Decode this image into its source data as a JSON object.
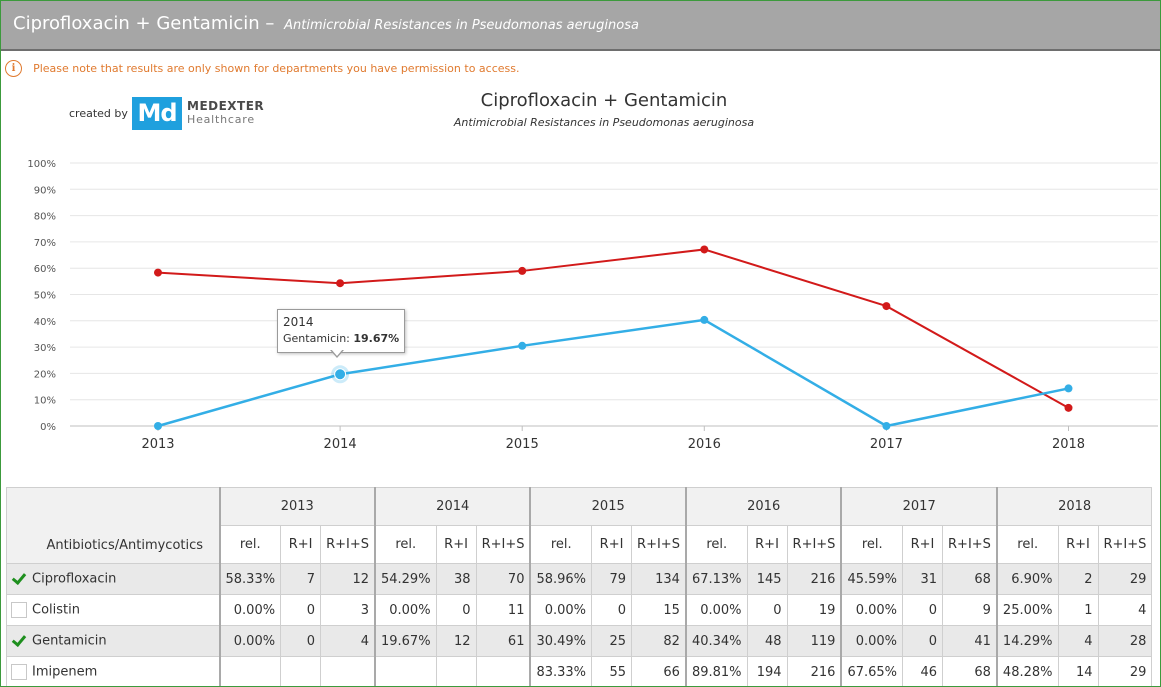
{
  "header": {
    "title": "Ciprofloxacin + Gentamicin",
    "separator": "–",
    "subtitle": "Antimicrobial Resistances in Pseudomonas aeruginosa"
  },
  "notice": {
    "icon": "info-icon",
    "text": "Please note that results are only shown for departments you have permission to access."
  },
  "branding": {
    "created_by": "created by",
    "logo_mark": "Md",
    "logo_name": "MEDEXTER",
    "logo_sub": "Healthcare",
    "logo_color": "#1fa0de"
  },
  "chart_data": {
    "type": "line",
    "title": "Ciprofloxacin + Gentamicin",
    "subtitle": "Antimicrobial Resistances in Pseudomonas aeruginosa",
    "x": [
      "2013",
      "2014",
      "2015",
      "2016",
      "2017",
      "2018"
    ],
    "y_ticks": [
      "0%",
      "10%",
      "20%",
      "30%",
      "40%",
      "50%",
      "60%",
      "70%",
      "80%",
      "90%",
      "100%"
    ],
    "ylim": [
      0,
      100
    ],
    "grid": true,
    "series": [
      {
        "name": "Ciprofloxacin",
        "color": "#d21a1a",
        "values": [
          58.33,
          54.29,
          58.96,
          67.13,
          45.59,
          6.9
        ]
      },
      {
        "name": "Gentamicin",
        "color": "#33aee6",
        "values": [
          0.0,
          19.67,
          30.49,
          40.34,
          0.0,
          14.29
        ]
      }
    ],
    "tooltip": {
      "year": "2014",
      "series": "Gentamicin",
      "label": "Gentamicin:",
      "value": "19.67%"
    }
  },
  "table": {
    "corner_label": "Antibiotics/Antimycotics",
    "years": [
      "2013",
      "2014",
      "2015",
      "2016",
      "2017",
      "2018"
    ],
    "subheaders": [
      "rel.",
      "R+I",
      "R+I+S"
    ],
    "rows": [
      {
        "name": "Ciprofloxacin",
        "checked": true,
        "cells": [
          "58.33%",
          "7",
          "12",
          "54.29%",
          "38",
          "70",
          "58.96%",
          "79",
          "134",
          "67.13%",
          "145",
          "216",
          "45.59%",
          "31",
          "68",
          "6.90%",
          "2",
          "29"
        ]
      },
      {
        "name": "Colistin",
        "checked": false,
        "cells": [
          "0.00%",
          "0",
          "3",
          "0.00%",
          "0",
          "11",
          "0.00%",
          "0",
          "15",
          "0.00%",
          "0",
          "19",
          "0.00%",
          "0",
          "9",
          "25.00%",
          "1",
          "4"
        ]
      },
      {
        "name": "Gentamicin",
        "checked": true,
        "cells": [
          "0.00%",
          "0",
          "4",
          "19.67%",
          "12",
          "61",
          "30.49%",
          "25",
          "82",
          "40.34%",
          "48",
          "119",
          "0.00%",
          "0",
          "41",
          "14.29%",
          "4",
          "28"
        ]
      },
      {
        "name": "Imipenem",
        "checked": false,
        "cells": [
          "",
          "",
          "",
          "",
          "",
          "",
          "83.33%",
          "55",
          "66",
          "89.81%",
          "194",
          "216",
          "67.65%",
          "46",
          "68",
          "48.28%",
          "14",
          "29"
        ]
      }
    ]
  }
}
